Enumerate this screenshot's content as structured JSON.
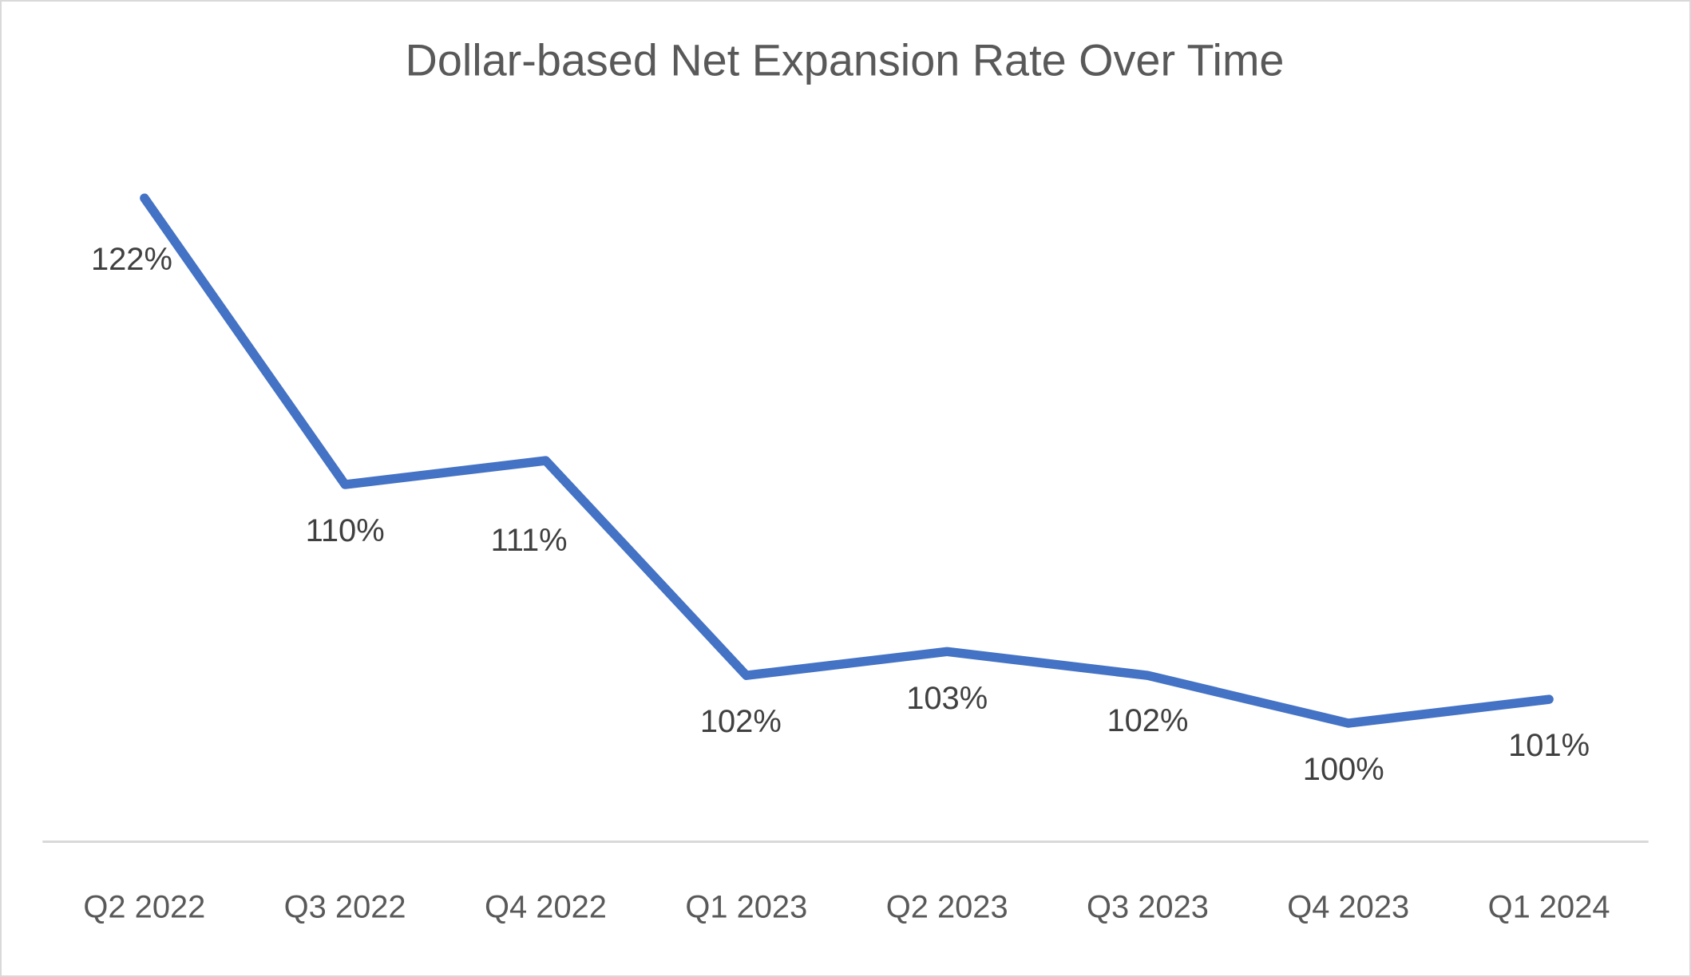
{
  "chart_data": {
    "type": "line",
    "title": "Dollar-based Net Expansion Rate Over Time",
    "categories": [
      "Q2 2022",
      "Q3 2022",
      "Q4 2022",
      "Q1 2023",
      "Q2 2023",
      "Q3 2023",
      "Q4 2023",
      "Q1 2024"
    ],
    "values": [
      122,
      110,
      111,
      102,
      103,
      102,
      100,
      101
    ],
    "data_labels": [
      "122%",
      "110%",
      "111%",
      "102%",
      "103%",
      "102%",
      "100%",
      "101%"
    ],
    "unit": "%",
    "xlabel": "",
    "ylabel": "",
    "legend": "none",
    "grid": false,
    "y_axis_visible": false,
    "x_axis_line_visible": true,
    "data_labels_position": "below",
    "colors": {
      "line": "#4472C4",
      "title_text": "#595959",
      "data_label_text": "#404040",
      "axis_label_text": "#595959",
      "axis_line": "#d9d9d9",
      "border": "#d9d9d9",
      "background": "#ffffff"
    }
  }
}
